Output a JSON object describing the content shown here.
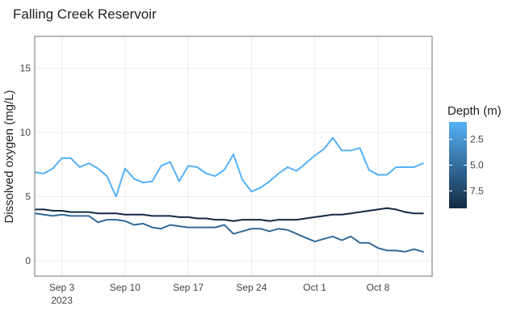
{
  "chart_data": {
    "type": "line",
    "title": "Falling Creek Reservoir",
    "xlabel": "",
    "ylabel": "Dissolved oxygen (mg/L)",
    "x_start": "2023-08-31",
    "ylim": [
      -1.2,
      17.5
    ],
    "xlim": [
      "2023-08-31",
      "2023-10-14"
    ],
    "y_ticks": [
      0,
      5,
      10,
      15
    ],
    "x_ticks": [
      {
        "date": "2023-09-03",
        "label": "Sep 3",
        "sublabel": "2023"
      },
      {
        "date": "2023-09-10",
        "label": "Sep 10",
        "sublabel": ""
      },
      {
        "date": "2023-09-17",
        "label": "Sep 17",
        "sublabel": ""
      },
      {
        "date": "2023-09-24",
        "label": "Sep 24",
        "sublabel": ""
      },
      {
        "date": "2023-10-01",
        "label": "Oct 1",
        "sublabel": ""
      },
      {
        "date": "2023-10-08",
        "label": "Oct 8",
        "sublabel": ""
      }
    ],
    "grid": true,
    "legend": {
      "title": "Depth (m)",
      "placement": "right",
      "type": "colorbar",
      "ticks": [
        "2.5",
        "5.0",
        "7.5"
      ],
      "tick_values": [
        2.5,
        5.0,
        7.5
      ],
      "range": [
        0.8,
        9.2
      ],
      "color_low": "#132b43",
      "color_high": "#56b1f7"
    },
    "series": [
      {
        "depth": 1.0,
        "color": "#56b1f7",
        "values": [
          6.9,
          6.8,
          7.2,
          8.0,
          8.0,
          7.3,
          7.6,
          7.2,
          6.6,
          5.0,
          7.2,
          6.4,
          6.1,
          6.2,
          7.4,
          7.7,
          6.2,
          7.4,
          7.3,
          6.8,
          6.6,
          7.1,
          8.3,
          6.3,
          5.4,
          5.7,
          6.2,
          6.8,
          7.3,
          7.0,
          7.6,
          8.2,
          8.7,
          9.6,
          8.6,
          8.6,
          8.8,
          7.1,
          6.7,
          6.7,
          7.3,
          7.3,
          7.3,
          7.6
        ]
      },
      {
        "depth": 5.0,
        "color": "#336a98",
        "values": [
          3.7,
          3.6,
          3.5,
          3.6,
          3.5,
          3.5,
          3.5,
          3.0,
          3.2,
          3.2,
          3.1,
          2.8,
          2.9,
          2.6,
          2.5,
          2.8,
          2.7,
          2.6,
          2.6,
          2.6,
          2.6,
          2.8,
          2.1,
          2.3,
          2.5,
          2.5,
          2.3,
          2.5,
          2.4,
          2.1,
          1.8,
          1.5,
          1.7,
          1.9,
          1.6,
          1.9,
          1.4,
          1.4,
          1.0,
          0.8,
          0.8,
          0.7,
          0.9,
          0.7
        ]
      },
      {
        "depth": 9.0,
        "color": "#132b43",
        "values": [
          4.0,
          4.0,
          3.9,
          3.9,
          3.8,
          3.8,
          3.8,
          3.7,
          3.7,
          3.7,
          3.6,
          3.6,
          3.6,
          3.5,
          3.5,
          3.5,
          3.4,
          3.4,
          3.3,
          3.3,
          3.2,
          3.2,
          3.1,
          3.2,
          3.2,
          3.2,
          3.1,
          3.2,
          3.2,
          3.2,
          3.3,
          3.4,
          3.5,
          3.6,
          3.6,
          3.7,
          3.8,
          3.9,
          4.0,
          4.1,
          4.0,
          3.8,
          3.7,
          3.7
        ]
      }
    ]
  }
}
